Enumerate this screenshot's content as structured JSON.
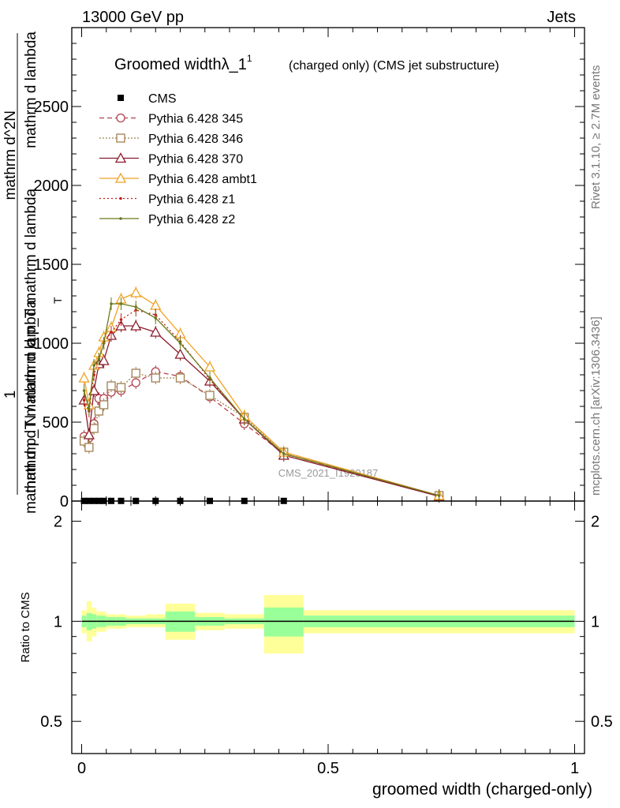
{
  "header": {
    "energy_label": "13000 GeV pp",
    "category_label": "Jets"
  },
  "side_labels": {
    "rivet": "Rivet 3.1.10, ≥ 2.7M events",
    "mcplots": "mcplots.cern.ch [arXiv:1306.3436]"
  },
  "chart_data": [
    {
      "type": "line",
      "title": "Groomed widthλ_1",
      "title_superscript": "1",
      "title_note": "(charged only) (CMS jet substructure)",
      "watermark": "CMS_2021_I1920187",
      "ylabel_top": "1",
      "ylabel_num": "mathrm d N / mathrm d p_T mathrm d lambda",
      "ylabel_den": "mathrm d^2N",
      "ylabel_den_mid": "mathrm d p_T mathrm d lambda",
      "ylim": [
        0,
        3000
      ],
      "xlim": [
        -0.02,
        1.02
      ],
      "yticks": [
        0,
        500,
        1000,
        1500,
        2000,
        2500
      ],
      "ytick_labels": [
        "0",
        "500",
        "1000",
        "1500",
        "2000",
        "2500"
      ],
      "legend": "top-left",
      "x": [
        0.005,
        0.015,
        0.025,
        0.035,
        0.045,
        0.06,
        0.08,
        0.11,
        0.15,
        0.2,
        0.26,
        0.33,
        0.41,
        0.725
      ],
      "series": [
        {
          "name": "CMS",
          "color": "#000000",
          "marker": "square-filled",
          "values": [
            1,
            1,
            1,
            1,
            1,
            1,
            1,
            1,
            1,
            1,
            1,
            1,
            1,
            null
          ]
        },
        {
          "name": "Pythia 6.428 345",
          "color": "#b3404e",
          "dash": "6,4",
          "marker": "circle-open",
          "values": [
            410,
            400,
            490,
            650,
            650,
            690,
            700,
            750,
            820,
            790,
            660,
            490,
            300,
            30
          ]
        },
        {
          "name": "Pythia 6.428 346",
          "color": "#a08050",
          "dash": "2,2",
          "marker": "square-open",
          "values": [
            380,
            340,
            460,
            570,
            610,
            730,
            720,
            810,
            780,
            780,
            670,
            530,
            310,
            35
          ]
        },
        {
          "name": "Pythia 6.428 370",
          "color": "#8b1a2b",
          "dash": "",
          "marker": "triangle-open",
          "values": [
            640,
            420,
            700,
            870,
            890,
            1050,
            1110,
            1110,
            1070,
            930,
            760,
            520,
            290,
            30
          ]
        },
        {
          "name": "Pythia 6.428 ambt1",
          "color": "#f0a020",
          "dash": "",
          "marker": "triangle-open",
          "values": [
            780,
            610,
            860,
            940,
            1040,
            1100,
            1280,
            1320,
            1240,
            1060,
            850,
            540,
            310,
            35
          ]
        },
        {
          "name": "Pythia 6.428 z1",
          "color": "#c0201a",
          "dash": "2,3",
          "marker": "dot",
          "values": [
            640,
            570,
            800,
            900,
            1000,
            1070,
            1150,
            1210,
            1180,
            1010,
            770,
            520,
            300,
            35
          ]
        },
        {
          "name": "Pythia 6.428 z2",
          "color": "#6b7a1a",
          "dash": "",
          "marker": "dot",
          "values": [
            700,
            580,
            860,
            900,
            1000,
            1250,
            1250,
            1230,
            1160,
            1000,
            780,
            520,
            300,
            35
          ]
        }
      ]
    },
    {
      "type": "area",
      "ylabel": "Ratio to CMS",
      "xlabel": "groomed width (charged-only)",
      "ylim": [
        0.4,
        2.3
      ],
      "xlim": [
        -0.02,
        1.02
      ],
      "xticks": [
        0,
        0.5,
        1
      ],
      "xtick_labels": [
        "0",
        "0.5",
        "1"
      ],
      "yticks": [
        0.5,
        1,
        2
      ],
      "ytick_labels": [
        "0.5",
        "1",
        "2"
      ],
      "reference": 1,
      "bin_edges": [
        0,
        0.01,
        0.02,
        0.03,
        0.04,
        0.05,
        0.07,
        0.09,
        0.13,
        0.17,
        0.23,
        0.29,
        0.37,
        0.45,
        1.0
      ],
      "band_inner": {
        "color": "#99ff99",
        "lower": [
          0.96,
          0.94,
          0.95,
          0.96,
          0.96,
          0.97,
          0.97,
          0.98,
          0.98,
          0.93,
          0.97,
          0.98,
          0.9,
          0.96
        ],
        "upper": [
          1.04,
          1.06,
          1.05,
          1.04,
          1.04,
          1.03,
          1.03,
          1.02,
          1.02,
          1.07,
          1.03,
          1.02,
          1.1,
          1.04
        ]
      },
      "band_outer": {
        "color": "#ffff99",
        "lower": [
          0.92,
          0.87,
          0.9,
          0.93,
          0.93,
          0.95,
          0.95,
          0.96,
          0.96,
          0.88,
          0.94,
          0.95,
          0.8,
          0.92
        ],
        "upper": [
          1.08,
          1.15,
          1.1,
          1.07,
          1.07,
          1.05,
          1.05,
          1.04,
          1.05,
          1.13,
          1.06,
          1.05,
          1.2,
          1.08
        ]
      }
    }
  ]
}
